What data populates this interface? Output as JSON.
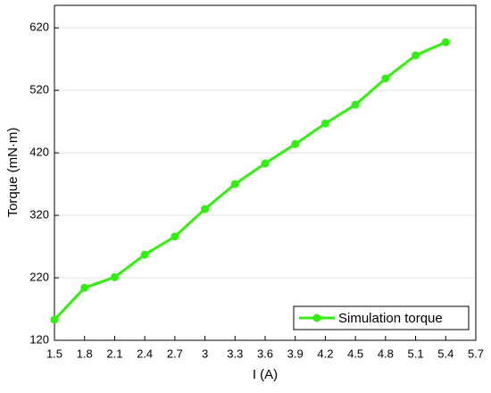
{
  "chart_data": {
    "type": "line",
    "x_label": "I (A)",
    "y_label": "Torque (mN·m)",
    "x": [
      1.5,
      1.8,
      2.1,
      2.4,
      2.7,
      3,
      3.3,
      3.6,
      3.9,
      4.2,
      4.5,
      4.8,
      5.1,
      5.4
    ],
    "series": [
      {
        "name": "Simulation torque",
        "color": "#33ee11",
        "values": [
          153,
          204,
          221,
          257,
          286,
          330,
          370,
          403,
          434,
          467,
          497,
          539,
          576,
          597
        ]
      }
    ],
    "xlim": [
      1.5,
      5.7
    ],
    "xticks": [
      1.5,
      1.8,
      2.1,
      2.4,
      2.7,
      3,
      3.3,
      3.6,
      3.9,
      4.2,
      4.5,
      4.8,
      5.1,
      5.4,
      5.7
    ],
    "ylim": [
      120,
      656
    ],
    "yticks": [
      120,
      220,
      320,
      420,
      520,
      620
    ],
    "grid": true,
    "legend": "lower right"
  }
}
